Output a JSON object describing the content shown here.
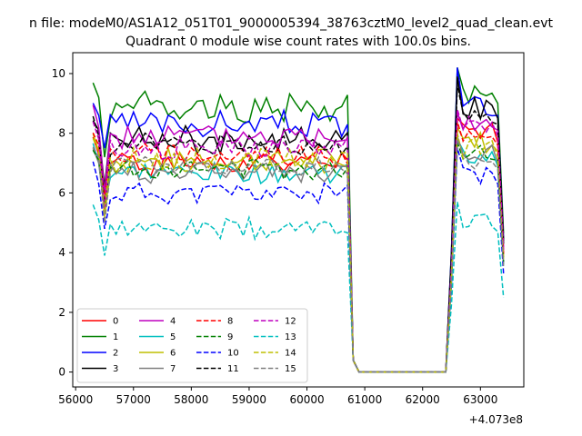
{
  "figure": {
    "suptitle": "n file: modeM0/AS1A12_051T01_9000005394_38763cztM0_level2_quad_clean.evt",
    "title": "Quadrant 0 module wise count rates with 100.0s bins.",
    "x_offset_label": "+4.073e8"
  },
  "chart_data": {
    "type": "line",
    "title": "Quadrant 0 module wise count rates with 100.0s bins.",
    "xlabel": "",
    "ylabel": "",
    "x_offset": 407300000,
    "xlim": [
      55950,
      63750
    ],
    "ylim": [
      -0.5,
      10.7
    ],
    "x_ticks": [
      56000,
      57000,
      58000,
      59000,
      60000,
      61000,
      62000,
      63000
    ],
    "y_ticks": [
      0,
      2,
      4,
      6,
      8,
      10
    ],
    "grid": false,
    "legend_position": "lower-left",
    "legend_columns": 4,
    "segments": [
      {
        "x_start": 56300,
        "x_end": 60700,
        "step": 100
      },
      {
        "x_start": 62400,
        "x_end": 63400,
        "step": 100
      }
    ],
    "gap_x": [
      60800,
      60900,
      61000,
      61100,
      61200,
      61300,
      61400,
      61500,
      61600,
      61700,
      61800,
      61900,
      62000,
      62100,
      62200,
      62300
    ],
    "gap_value": 0,
    "series": [
      {
        "name": "0",
        "color": "#ff0000",
        "dash": "solid",
        "base": 7.0,
        "amp": 0.35,
        "seed": 1,
        "drop": 5.6,
        "peak": 8.5,
        "phase2": 8.0
      },
      {
        "name": "1",
        "color": "#008000",
        "dash": "solid",
        "base": 8.9,
        "amp": 0.45,
        "seed": 2,
        "drop": 7.2,
        "peak": 10.2,
        "phase2": 9.3
      },
      {
        "name": "2",
        "color": "#0000ff",
        "dash": "solid",
        "base": 8.3,
        "amp": 0.4,
        "seed": 3,
        "drop": 7.5,
        "peak": 10.2,
        "phase2": 8.9
      },
      {
        "name": "3",
        "color": "#000000",
        "dash": "solid",
        "base": 7.8,
        "amp": 0.4,
        "seed": 4,
        "drop": 6.2,
        "peak": 9.9,
        "phase2": 8.8
      },
      {
        "name": "4",
        "color": "#bf00bf",
        "dash": "solid",
        "base": 7.9,
        "amp": 0.35,
        "seed": 5,
        "drop": 6.0,
        "peak": 8.7,
        "phase2": 8.4
      },
      {
        "name": "5",
        "color": "#00bfbf",
        "dash": "solid",
        "base": 6.7,
        "amp": 0.3,
        "seed": 6,
        "drop": 5.6,
        "peak": 7.8,
        "phase2": 7.2
      },
      {
        "name": "6",
        "color": "#bfbf00",
        "dash": "solid",
        "base": 7.1,
        "amp": 0.35,
        "seed": 7,
        "drop": 5.2,
        "peak": 8.2,
        "phase2": 7.7
      },
      {
        "name": "7",
        "color": "#808080",
        "dash": "solid",
        "base": 6.7,
        "amp": 0.35,
        "seed": 8,
        "drop": 5.4,
        "peak": 7.9,
        "phase2": 7.3
      },
      {
        "name": "8",
        "color": "#ff0000",
        "dash": "dashed",
        "base": 7.3,
        "amp": 0.35,
        "seed": 9,
        "drop": 5.8,
        "peak": 8.4,
        "phase2": 7.9
      },
      {
        "name": "9",
        "color": "#008000",
        "dash": "dashed",
        "base": 6.8,
        "amp": 0.3,
        "seed": 10,
        "drop": 5.6,
        "peak": 7.7,
        "phase2": 7.4
      },
      {
        "name": "10",
        "color": "#0000ff",
        "dash": "dashed",
        "base": 6.0,
        "amp": 0.35,
        "seed": 11,
        "drop": 4.8,
        "peak": 7.5,
        "phase2": 6.6
      },
      {
        "name": "11",
        "color": "#000000",
        "dash": "dashed",
        "base": 7.6,
        "amp": 0.35,
        "seed": 12,
        "drop": 5.5,
        "peak": 9.6,
        "phase2": 8.6
      },
      {
        "name": "12",
        "color": "#bf00bf",
        "dash": "dashed",
        "base": 7.5,
        "amp": 0.35,
        "seed": 13,
        "drop": 5.4,
        "peak": 8.8,
        "phase2": 8.2
      },
      {
        "name": "13",
        "color": "#00bfbf",
        "dash": "dashed",
        "base": 4.8,
        "amp": 0.3,
        "seed": 14,
        "drop": 3.9,
        "peak": 5.7,
        "phase2": 5.0
      },
      {
        "name": "14",
        "color": "#bfbf00",
        "dash": "dashed",
        "base": 7.1,
        "amp": 0.35,
        "seed": 15,
        "drop": 5.3,
        "peak": 8.0,
        "phase2": 7.5
      },
      {
        "name": "15",
        "color": "#808080",
        "dash": "dashed",
        "base": 6.9,
        "amp": 0.35,
        "seed": 16,
        "drop": 5.0,
        "peak": 7.8,
        "phase2": 7.1
      }
    ]
  }
}
